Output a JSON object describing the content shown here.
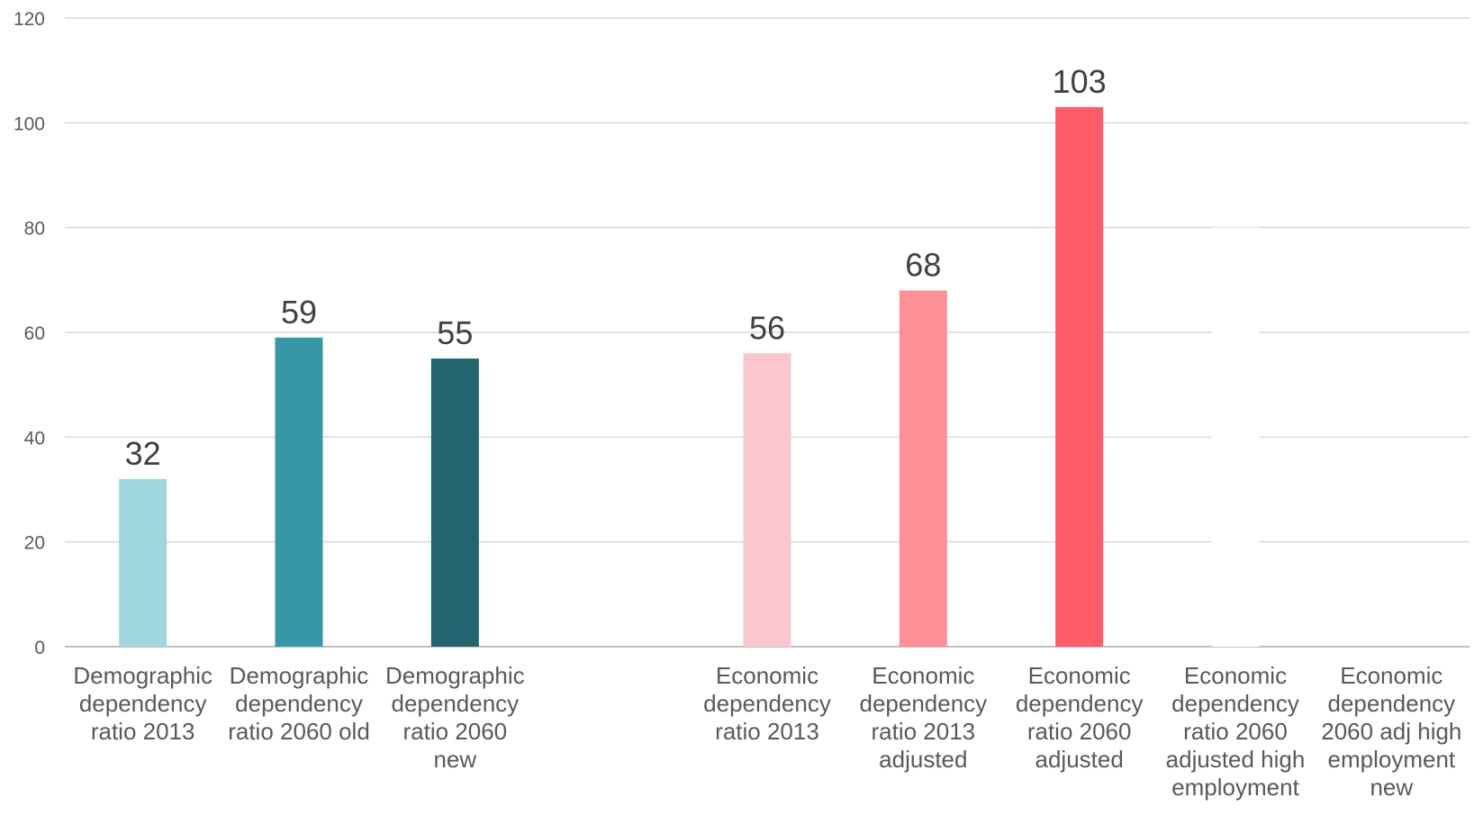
{
  "chart_data": {
    "type": "bar",
    "title": "",
    "xlabel": "",
    "ylabel": "",
    "ylim": [
      0,
      120
    ],
    "yticks": [
      0,
      20,
      40,
      60,
      80,
      100,
      120
    ],
    "grid": true,
    "legend": "none",
    "categories": [
      "Demographic dependency ratio 2013",
      "Demographic dependency ratio 2060 old",
      "Demographic dependency ratio 2060 new",
      "",
      "Economic dependency ratio 2013",
      "Economic dependency ratio 2013 adjusted",
      "Economic dependency ratio 2060 adjusted",
      "Economic dependency ratio 2060 adjusted high employment",
      "Economic dependency 2060 adj high employment new"
    ],
    "category_lines": [
      [
        "Demographic",
        "dependency",
        "ratio 2013"
      ],
      [
        "Demographic",
        "dependency",
        "ratio 2060 old"
      ],
      [
        "Demographic",
        "dependency",
        "ratio 2060",
        "new"
      ],
      [],
      [
        "Economic",
        "dependency",
        "ratio 2013"
      ],
      [
        "Economic",
        "dependency",
        "ratio 2013",
        "adjusted"
      ],
      [
        "Economic",
        "dependency",
        "ratio 2060",
        "adjusted"
      ],
      [
        "Economic",
        "dependency",
        "ratio 2060",
        "adjusted high",
        "employment"
      ],
      [
        "Economic",
        "dependency",
        "2060 adj high",
        "employment",
        "new"
      ]
    ],
    "values": [
      32,
      59,
      55,
      null,
      56,
      68,
      103,
      80,
      null
    ],
    "value_labels": [
      "32",
      "59",
      "55",
      "",
      "56",
      "68",
      "103",
      "",
      ""
    ],
    "colors": [
      "#a0d6e0",
      "#3797a7",
      "#23656e",
      "",
      "#fbc6cc",
      "#fd8f96",
      "#fe5c68",
      "#ffffff",
      "#ffffff"
    ]
  }
}
